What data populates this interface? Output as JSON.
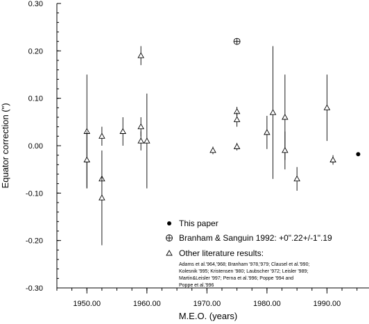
{
  "chart_data": {
    "type": "scatter",
    "xlabel": "M.E.O. (years)",
    "ylabel": "Equator correction (\")",
    "xlim": [
      1945,
      1997
    ],
    "ylim": [
      -0.3,
      0.3
    ],
    "x_ticks": [
      1950,
      1960,
      1970,
      1980,
      1990
    ],
    "x_tick_labels": [
      "1950.00",
      "1960.00",
      "1970.00",
      "1980.00",
      "1990.00"
    ],
    "y_ticks": [
      0.3,
      0.2,
      0.1,
      0.0,
      -0.1,
      -0.2,
      -0.3
    ],
    "y_tick_labels": [
      "0.30",
      "0.20",
      "0.10",
      "0.00",
      "-0.10",
      "-0.20",
      "-0.30"
    ],
    "legend_position": "bottom-right",
    "series": [
      {
        "name": "This paper",
        "marker": "filled-circle",
        "points": [
          {
            "x": 1995.2,
            "y": -0.018,
            "err": 0.003
          }
        ]
      },
      {
        "name": "Branham & Sanguin 1992: +0\".22+/-1\".19",
        "marker": "circle-plus",
        "points": [
          {
            "x": 1975.0,
            "y": 0.22
          }
        ]
      },
      {
        "name": "Other literature results:",
        "marker": "triangle",
        "points": [
          {
            "x": 1950.0,
            "y": 0.03,
            "err": 0.12
          },
          {
            "x": 1950.0,
            "y": -0.03,
            "err": 0.06
          },
          {
            "x": 1952.5,
            "y": 0.02,
            "err": 0.02
          },
          {
            "x": 1952.5,
            "y": -0.07,
            "err": 0.0
          },
          {
            "x": 1952.5,
            "y": -0.11,
            "err": 0.1
          },
          {
            "x": 1956.0,
            "y": 0.03,
            "err": 0.03
          },
          {
            "x": 1959.0,
            "y": 0.19,
            "err": 0.02
          },
          {
            "x": 1959.0,
            "y": 0.04,
            "err": 0.02
          },
          {
            "x": 1959.0,
            "y": 0.01,
            "err": 0.02
          },
          {
            "x": 1960.0,
            "y": 0.01,
            "err": 0.1
          },
          {
            "x": 1971.0,
            "y": -0.01,
            "err": 0.008
          },
          {
            "x": 1975.0,
            "y": 0.072,
            "err": 0.01
          },
          {
            "x": 1975.0,
            "y": 0.055,
            "err": 0.015
          },
          {
            "x": 1975.0,
            "y": -0.002,
            "err": 0.008
          },
          {
            "x": 1980.0,
            "y": 0.028,
            "err": 0.035
          },
          {
            "x": 1981.0,
            "y": 0.07,
            "err": 0.14
          },
          {
            "x": 1983.0,
            "y": 0.06,
            "err": 0.09
          },
          {
            "x": 1983.0,
            "y": -0.01,
            "err": 0.04
          },
          {
            "x": 1985.0,
            "y": -0.07,
            "err": 0.025
          },
          {
            "x": 1990.0,
            "y": 0.08,
            "err": 0.07
          },
          {
            "x": 1991.0,
            "y": -0.03,
            "err": 0.01
          }
        ]
      }
    ],
    "references_note": [
      "Adams et al.'964,'968; Branham '978,'979; Clausel et al.'990;",
      "Kolesnik '995; Kristensen '980; Laubscher '972; Leisler '989;",
      "Martin&Leisler '997; Perna et al.'996; Poppe '994 and",
      "Poppe et al.'996"
    ]
  }
}
